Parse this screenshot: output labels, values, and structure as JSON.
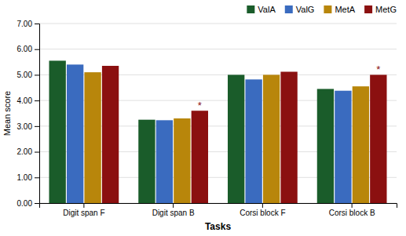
{
  "chart_data": {
    "type": "bar",
    "xlabel": "Tasks",
    "ylabel": "Mean score",
    "categories": [
      "Digit span F",
      "Digit span B",
      "Corsi block F",
      "Corsi block B"
    ],
    "series": [
      {
        "name": "ValA",
        "color": "#1a5c2a",
        "values": [
          5.55,
          3.25,
          5.0,
          4.45
        ]
      },
      {
        "name": "ValG",
        "color": "#3a6bbf",
        "values": [
          5.4,
          3.23,
          4.82,
          4.38
        ]
      },
      {
        "name": "MetA",
        "color": "#b8860b",
        "values": [
          5.1,
          3.3,
          5.0,
          4.55
        ]
      },
      {
        "name": "MetG",
        "color": "#8b1010",
        "values": [
          5.35,
          3.6,
          5.12,
          5.0
        ]
      }
    ],
    "ylim": [
      0.0,
      7.0
    ],
    "yticks": [
      {
        "value": 0,
        "label": "0.00"
      },
      {
        "value": 1,
        "label": "1.00"
      },
      {
        "value": 2,
        "label": "2.00"
      },
      {
        "value": 3,
        "label": "3.00"
      },
      {
        "value": 4,
        "label": "4.00"
      },
      {
        "value": 5,
        "label": "5.00"
      },
      {
        "value": 6,
        "label": "6.00"
      },
      {
        "value": 7,
        "label": "7.00"
      }
    ],
    "annotations": [
      {
        "text": "*",
        "category": "Digit span B",
        "series": "MetG",
        "color": "#8b1010"
      },
      {
        "text": "*",
        "category": "Corsi block B",
        "series": "MetG",
        "color": "#8b1010"
      }
    ],
    "grid": true,
    "legend": "top"
  }
}
